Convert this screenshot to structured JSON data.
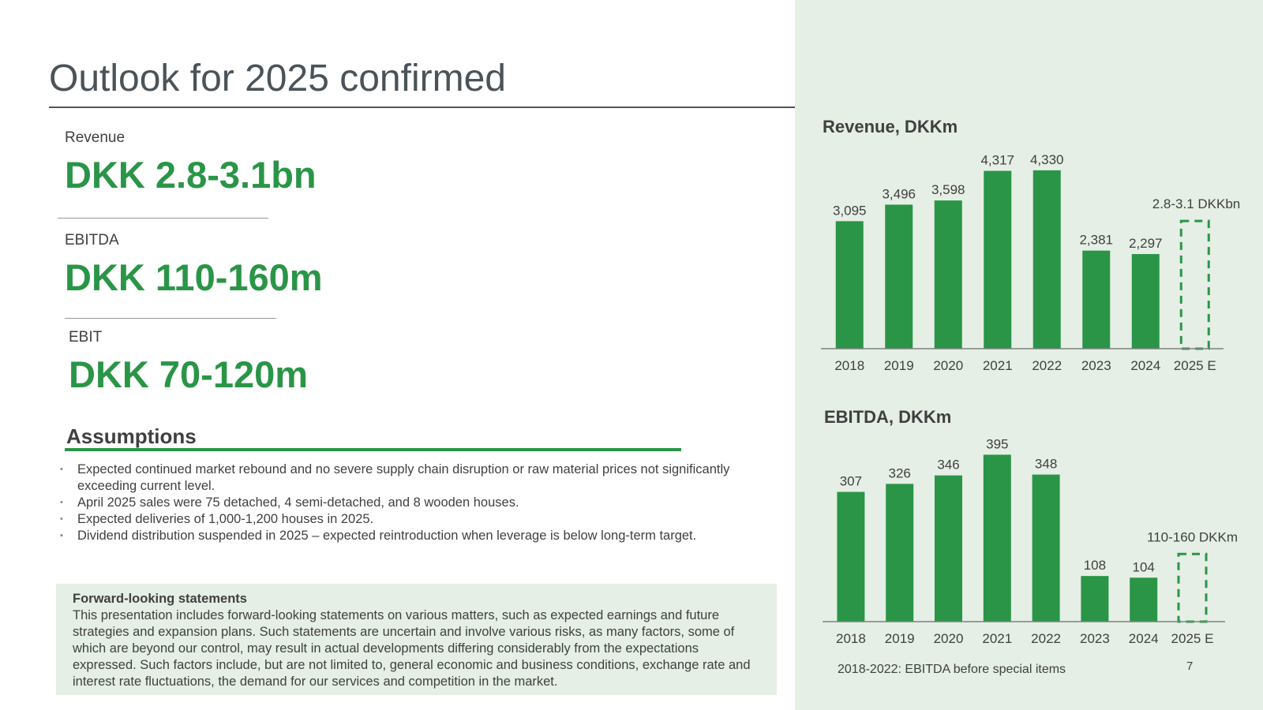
{
  "slide": {
    "title": "Outlook for 2025 confirmed",
    "page_number": "7",
    "colors": {
      "accent": "#2a9547",
      "panel": "#e5efe5",
      "text": "#404040"
    }
  },
  "kpis": [
    {
      "label": "Revenue",
      "value": "DKK 2.8-3.1bn"
    },
    {
      "label": "EBITDA",
      "value": "DKK 110-160m"
    },
    {
      "label": "EBIT",
      "value": "DKK 70-120m"
    }
  ],
  "assumptions": {
    "title": "Assumptions",
    "bullets": [
      "Expected continued market rebound and no severe supply chain disruption or raw material prices not significantly exceeding current level.",
      "April 2025 sales were 75 detached, 4 semi-detached, and 8 wooden houses.",
      "Expected deliveries of 1,000-1,200 houses in 2025.",
      "Dividend distribution suspended in 2025 – expected reintroduction when leverage is below long-term target."
    ]
  },
  "forward_looking": {
    "title": "Forward-looking statements",
    "body": "This presentation includes forward-looking statements on various matters, such as expected earnings and future strategies and expansion plans. Such statements are uncertain and involve various risks, as many factors, some of which are beyond our control, may result in actual developments differing considerably from the expectations expressed. Such factors include, but are not limited to, general economic and business conditions, exchange rate and interest rate fluctuations, the demand for our services and competition in the market."
  },
  "footnote": "2018-2022: EBITDA before special items",
  "chart_data": [
    {
      "type": "bar",
      "title": "Revenue, DKKm",
      "categories": [
        "2018",
        "2019",
        "2020",
        "2021",
        "2022",
        "2023",
        "2024",
        "2025 E"
      ],
      "values": [
        3095,
        3496,
        3598,
        4317,
        4330,
        2381,
        2297,
        null
      ],
      "labels": [
        "3,095",
        "3,496",
        "3,598",
        "4,317",
        "4,330",
        "2,381",
        "2,297",
        ""
      ],
      "forecast": {
        "category": "2025 E",
        "low": 2800,
        "high": 3100,
        "label": "2.8-3.1 DKKbn",
        "style": "dashed-outline"
      },
      "ylim": [
        0,
        4500
      ],
      "xlabel": "",
      "ylabel": ""
    },
    {
      "type": "bar",
      "title": "EBITDA, DKKm",
      "categories": [
        "2018",
        "2019",
        "2020",
        "2021",
        "2022",
        "2023",
        "2024",
        "2025 E"
      ],
      "values": [
        307,
        326,
        346,
        395,
        348,
        108,
        104,
        null
      ],
      "labels": [
        "307",
        "326",
        "346",
        "395",
        "348",
        "108",
        "104",
        ""
      ],
      "forecast": {
        "category": "2025 E",
        "low": 110,
        "high": 160,
        "label": "110-160 DKKm",
        "style": "dashed-outline"
      },
      "ylim": [
        0,
        420
      ],
      "xlabel": "",
      "ylabel": ""
    }
  ]
}
